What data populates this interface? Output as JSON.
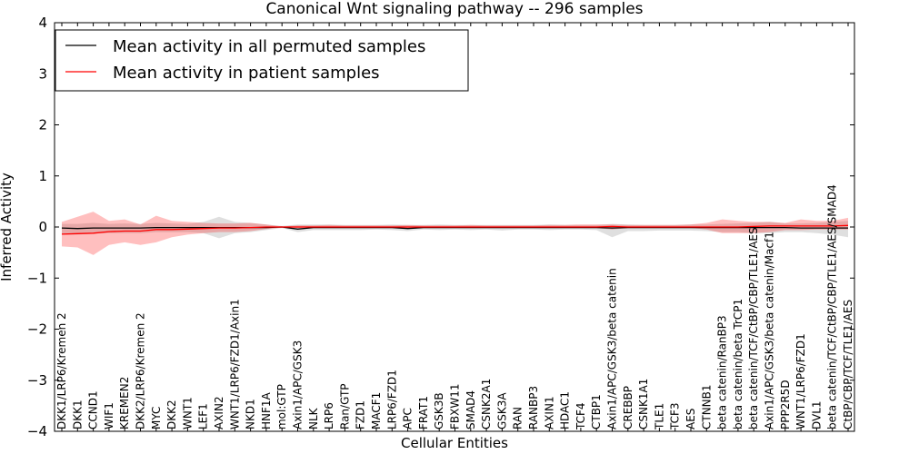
{
  "chart_data": {
    "type": "line",
    "title": "Canonical Wnt signaling pathway -- 296 samples",
    "xlabel": "Cellular Entities",
    "ylabel": "Inferred Activity",
    "ylim": [
      -4,
      4
    ],
    "yticks": [
      -4,
      -3,
      -2,
      -1,
      0,
      1,
      2,
      3,
      4
    ],
    "grid": false,
    "legend_position": "top-left",
    "categories": [
      "DKK1/LRP6/Kremen 2",
      "DKK1",
      "CCND1",
      "WIF1",
      "KREMEN2",
      "DKK2/LRP6/Kremen 2",
      "MYC",
      "DKK2",
      "WNT1",
      "LEF1",
      "AXIN2",
      "WNT1/LRP6/FZD1/Axin1",
      "NKD1",
      "HNF1A",
      "mol:GTP",
      "Axin1/APC/GSK3",
      "NLK",
      "LRP6",
      "Ran/GTP",
      "FZD1",
      "MACF1",
      "LRP6/FZD1",
      "APC",
      "FRAT1",
      "GSK3B",
      "FBXW11",
      "SMAD4",
      "CSNK2A1",
      "GSK3A",
      "RAN",
      "RANBP3",
      "AXIN1",
      "HDAC1",
      "TCF4",
      "CTBP1",
      "Axin1/APC/GSK3/beta catenin",
      "CREBBP",
      "CSNK1A1",
      "TLE1",
      "TCF3",
      "AES",
      "CTNNB1",
      "beta catenin/RanBP3",
      "beta catenin/beta TrCP1",
      "beta catenin/TCF/CtBP/CBP/TLE1/AES",
      "Axin1/APC/GSK3/beta catenin/Macf1",
      "PPP2R5D",
      "WNT1/LRP6/FZD1",
      "DVL1",
      "beta catenin/TCF/CtBP/CBP/TLE1/AES/SMAD4",
      "CtBP/CBP/TCF/TLE1/AES"
    ],
    "series": [
      {
        "name": "Mean activity in all permuted samples",
        "color": "#000000",
        "values": [
          -0.02,
          -0.03,
          -0.02,
          -0.02,
          -0.02,
          -0.02,
          -0.01,
          -0.01,
          -0.01,
          -0.01,
          -0.01,
          -0.01,
          -0.01,
          -0.01,
          0.0,
          -0.04,
          -0.01,
          -0.01,
          -0.01,
          -0.01,
          -0.01,
          -0.01,
          -0.03,
          -0.01,
          -0.01,
          -0.01,
          -0.01,
          -0.01,
          -0.01,
          -0.01,
          -0.01,
          -0.01,
          -0.01,
          -0.01,
          -0.01,
          -0.02,
          -0.01,
          -0.01,
          -0.01,
          -0.01,
          -0.01,
          -0.01,
          -0.01,
          -0.01,
          -0.01,
          -0.01,
          -0.01,
          -0.02,
          -0.02,
          -0.02,
          -0.02
        ],
        "lower": [
          -0.15,
          -0.15,
          -0.13,
          -0.12,
          -0.12,
          -0.12,
          -0.1,
          -0.1,
          -0.1,
          -0.12,
          -0.22,
          -0.12,
          -0.1,
          -0.06,
          -0.02,
          -0.1,
          -0.06,
          -0.06,
          -0.06,
          -0.06,
          -0.05,
          -0.06,
          -0.08,
          -0.05,
          -0.06,
          -0.05,
          -0.06,
          -0.05,
          -0.07,
          -0.05,
          -0.05,
          -0.06,
          -0.05,
          -0.05,
          -0.06,
          -0.2,
          -0.08,
          -0.08,
          -0.07,
          -0.07,
          -0.07,
          -0.08,
          -0.1,
          -0.1,
          -0.12,
          -0.12,
          -0.1,
          -0.1,
          -0.12,
          -0.15,
          -0.2
        ],
        "upper": [
          0.06,
          0.06,
          0.08,
          0.06,
          0.07,
          0.06,
          0.08,
          0.07,
          0.06,
          0.1,
          0.2,
          0.1,
          0.08,
          0.05,
          0.02,
          0.05,
          0.05,
          0.05,
          0.04,
          0.04,
          0.04,
          0.05,
          0.04,
          0.04,
          0.05,
          0.04,
          0.04,
          0.04,
          0.04,
          0.04,
          0.04,
          0.05,
          0.04,
          0.04,
          0.04,
          0.06,
          0.05,
          0.04,
          0.04,
          0.04,
          0.05,
          0.05,
          0.06,
          0.07,
          0.08,
          0.1,
          0.07,
          0.07,
          0.08,
          0.1,
          0.12
        ]
      },
      {
        "name": "Mean activity in patient samples",
        "color": "#ff0000",
        "values": [
          -0.14,
          -0.13,
          -0.12,
          -0.09,
          -0.08,
          -0.08,
          -0.05,
          -0.05,
          -0.04,
          -0.03,
          -0.02,
          -0.02,
          -0.01,
          0.0,
          0.0,
          0.0,
          0.0,
          0.0,
          0.0,
          0.0,
          0.0,
          0.0,
          0.0,
          0.0,
          0.0,
          0.0,
          0.0,
          0.0,
          0.0,
          0.0,
          0.0,
          0.0,
          0.0,
          0.0,
          0.0,
          0.01,
          0.0,
          0.0,
          0.0,
          0.0,
          0.0,
          0.0,
          0.0,
          0.0,
          0.01,
          0.02,
          0.02,
          0.02,
          0.02,
          0.02,
          0.03
        ],
        "lower": [
          -0.38,
          -0.4,
          -0.55,
          -0.35,
          -0.3,
          -0.35,
          -0.3,
          -0.2,
          -0.15,
          -0.12,
          -0.1,
          -0.1,
          -0.08,
          -0.04,
          -0.01,
          -0.02,
          -0.02,
          -0.02,
          -0.02,
          -0.02,
          -0.02,
          -0.02,
          -0.02,
          -0.02,
          -0.02,
          -0.02,
          -0.02,
          -0.02,
          -0.02,
          -0.02,
          -0.02,
          -0.02,
          -0.02,
          -0.02,
          -0.02,
          -0.05,
          -0.02,
          -0.02,
          -0.02,
          -0.02,
          -0.02,
          -0.05,
          -0.12,
          -0.12,
          -0.12,
          -0.1,
          -0.06,
          -0.06,
          -0.05,
          -0.05,
          -0.05
        ],
        "upper": [
          0.1,
          0.2,
          0.3,
          0.12,
          0.15,
          0.05,
          0.22,
          0.12,
          0.1,
          0.08,
          0.07,
          0.07,
          0.08,
          0.05,
          0.01,
          0.03,
          0.03,
          0.04,
          0.03,
          0.03,
          0.03,
          0.03,
          0.04,
          0.03,
          0.03,
          0.03,
          0.04,
          0.03,
          0.03,
          0.03,
          0.03,
          0.04,
          0.04,
          0.05,
          0.05,
          0.05,
          0.04,
          0.04,
          0.04,
          0.04,
          0.05,
          0.08,
          0.15,
          0.12,
          0.1,
          0.1,
          0.08,
          0.15,
          0.12,
          0.12,
          0.18
        ]
      }
    ]
  }
}
